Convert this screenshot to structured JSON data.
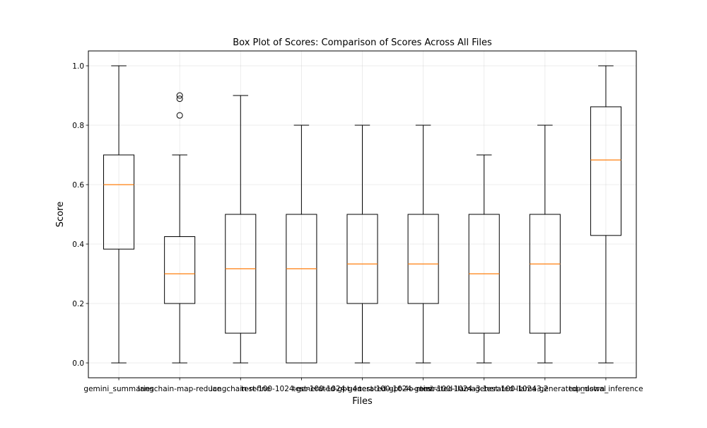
{
  "chart_data": {
    "type": "box",
    "title": "Box Plot of Scores: Comparison of Scores Across All Files",
    "xlabel": "Files",
    "ylabel": "Score",
    "ylim": [
      -0.05,
      1.05
    ],
    "yticks": [
      0.0,
      0.2,
      0.4,
      0.6,
      0.8,
      1.0
    ],
    "ytick_labels": [
      "0.0",
      "0.2",
      "0.4",
      "0.6",
      "0.8",
      "1.0"
    ],
    "grid": true,
    "colors": {
      "box": "#000000",
      "median": "#ff7f0e",
      "grid": "#b0b0b0"
    },
    "categories": [
      "gemini_summaries",
      "langchain-map-reduce",
      "langchain-refine",
      "test-100-1024-generated-gpt-4o",
      "test-100-1024-generated-gpt-4o-mini",
      "test-100-1024-generated-llama3.1",
      "test-100-1024-generated-llama3.2",
      "test-100-1024-generated-mistral",
      "top_down_inference"
    ],
    "boxes": [
      {
        "whislo": 0.0,
        "q1": 0.383,
        "med": 0.6,
        "q3": 0.7,
        "whishi": 1.0,
        "fliers": []
      },
      {
        "whislo": 0.0,
        "q1": 0.2,
        "med": 0.3,
        "q3": 0.425,
        "whishi": 0.7,
        "fliers": [
          0.9,
          0.889,
          0.833
        ]
      },
      {
        "whislo": 0.0,
        "q1": 0.1,
        "med": 0.317,
        "q3": 0.5,
        "whishi": 0.9,
        "fliers": []
      },
      {
        "whislo": 0.0,
        "q1": 0.0,
        "med": 0.317,
        "q3": 0.5,
        "whishi": 0.8,
        "fliers": []
      },
      {
        "whislo": 0.0,
        "q1": 0.2,
        "med": 0.333,
        "q3": 0.5,
        "whishi": 0.8,
        "fliers": []
      },
      {
        "whislo": 0.0,
        "q1": 0.2,
        "med": 0.333,
        "q3": 0.5,
        "whishi": 0.8,
        "fliers": []
      },
      {
        "whislo": 0.0,
        "q1": 0.1,
        "med": 0.3,
        "q3": 0.5,
        "whishi": 0.7,
        "fliers": []
      },
      {
        "whislo": 0.0,
        "q1": 0.1,
        "med": 0.333,
        "q3": 0.5,
        "whishi": 0.8,
        "fliers": []
      },
      {
        "whislo": 0.0,
        "q1": 0.429,
        "med": 0.683,
        "q3": 0.862,
        "whishi": 1.0,
        "fliers": []
      }
    ]
  }
}
